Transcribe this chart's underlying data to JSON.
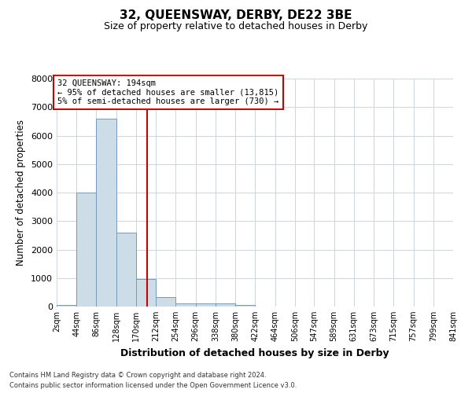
{
  "title": "32, QUEENSWAY, DERBY, DE22 3BE",
  "subtitle": "Size of property relative to detached houses in Derby",
  "xlabel": "Distribution of detached houses by size in Derby",
  "ylabel": "Number of detached properties",
  "bar_color": "#ccdde8",
  "bar_edge_color": "#7799bb",
  "grid_color": "#ccd4de",
  "bin_edges": [
    2,
    44,
    86,
    128,
    170,
    212,
    254,
    296,
    338,
    380,
    422,
    464,
    506,
    547,
    589,
    631,
    673,
    715,
    757,
    799,
    841
  ],
  "bar_heights": [
    60,
    4000,
    6600,
    2600,
    975,
    340,
    120,
    100,
    100,
    50,
    0,
    0,
    0,
    0,
    0,
    0,
    0,
    0,
    0,
    0
  ],
  "red_line_x": 194,
  "ylim": [
    0,
    8000
  ],
  "yticks": [
    0,
    1000,
    2000,
    3000,
    4000,
    5000,
    6000,
    7000,
    8000
  ],
  "annotation_title": "32 QUEENSWAY: 194sqm",
  "annotation_line1": "← 95% of detached houses are smaller (13,815)",
  "annotation_line2": "5% of semi-detached houses are larger (730) →",
  "annotation_box_color": "#ffffff",
  "annotation_box_edge_color": "#cc0000",
  "footnote1": "Contains HM Land Registry data © Crown copyright and database right 2024.",
  "footnote2": "Contains public sector information licensed under the Open Government Licence v3.0."
}
